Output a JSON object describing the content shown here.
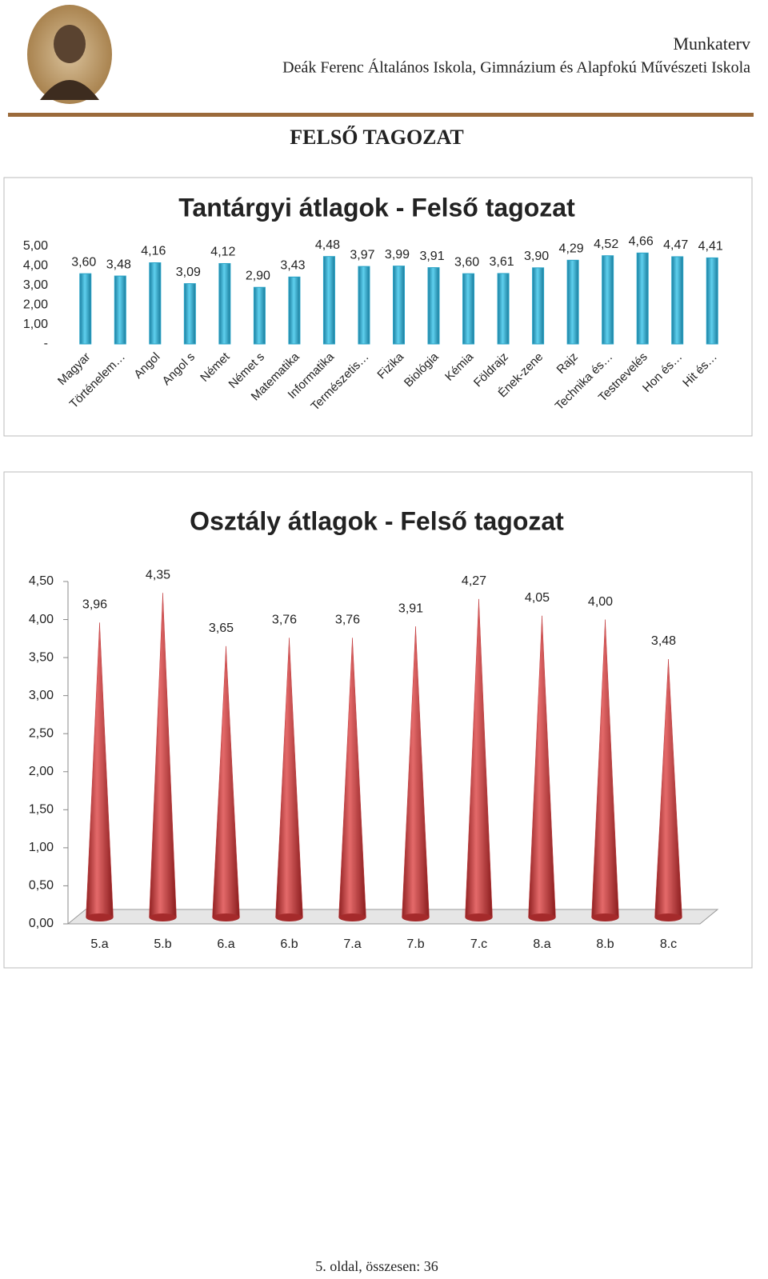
{
  "header": {
    "line1": "Munkaterv",
    "line2": "Deák Ferenc Általános Iskola, Gimnázium és Alapfokú Művészeti Iskola"
  },
  "section_title": "FELSŐ TAGOZAT",
  "chart_data": [
    {
      "type": "bar",
      "title": "Tantárgyi átlagok - Felső tagozat",
      "color": "#29a3c6",
      "categories": [
        "Magyar",
        "Történelem…",
        "Angol",
        "Angol s",
        "Német",
        "Német s",
        "Matematika",
        "Informatika",
        "Természetis…",
        "Fizika",
        "Biológia",
        "Kémia",
        "Földrajz",
        "Ének-zene",
        "Rajz",
        "Technika és…",
        "Testnevelés",
        "Hon és…",
        "Hit és…"
      ],
      "values": [
        3.6,
        3.48,
        4.16,
        3.09,
        4.12,
        2.9,
        3.43,
        4.48,
        3.97,
        3.99,
        3.91,
        3.6,
        3.61,
        3.9,
        4.29,
        4.52,
        4.66,
        4.47,
        4.41
      ],
      "value_labels": [
        "3,60",
        "3,48",
        "4,16",
        "3,09",
        "4,12",
        "2,90",
        "3,43",
        "4,48",
        "3,97",
        "3,99",
        "3,91",
        "3,60",
        "3,61",
        "3,90",
        "4,29",
        "4,52",
        "4,66",
        "4,47",
        "4,41"
      ],
      "ylim": [
        0,
        5
      ],
      "yticks": [
        {
          "value": 0,
          "label": "-"
        },
        {
          "value": 1,
          "label": "1,00"
        },
        {
          "value": 2,
          "label": "2,00"
        },
        {
          "value": 3,
          "label": "3,00"
        },
        {
          "value": 4,
          "label": "4,00"
        },
        {
          "value": 5,
          "label": "5,00"
        }
      ],
      "grid": false
    },
    {
      "type": "cone",
      "title": "Osztály átlagok - Felső tagozat",
      "color": "#c0393b",
      "categories": [
        "5.a",
        "5.b",
        "6.a",
        "6.b",
        "7.a",
        "7.b",
        "7.c",
        "8.a",
        "8.b",
        "8.c"
      ],
      "values": [
        3.96,
        4.35,
        3.65,
        3.76,
        3.76,
        3.91,
        4.27,
        4.05,
        4.0,
        3.48
      ],
      "value_labels": [
        "3,96",
        "4,35",
        "3,65",
        "3,76",
        "3,76",
        "3,91",
        "4,27",
        "4,05",
        "4,00",
        "3,48"
      ],
      "ylim": [
        0,
        4.5
      ],
      "yticks": [
        {
          "value": 0,
          "label": "0,00"
        },
        {
          "value": 0.5,
          "label": "0,50"
        },
        {
          "value": 1,
          "label": "1,00"
        },
        {
          "value": 1.5,
          "label": "1,50"
        },
        {
          "value": 2,
          "label": "2,00"
        },
        {
          "value": 2.5,
          "label": "2,50"
        },
        {
          "value": 3,
          "label": "3,00"
        },
        {
          "value": 3.5,
          "label": "3,50"
        },
        {
          "value": 4,
          "label": "4,00"
        },
        {
          "value": 4.5,
          "label": "4,50"
        }
      ],
      "grid": false
    }
  ],
  "footer": "5. oldal, összesen: 36"
}
